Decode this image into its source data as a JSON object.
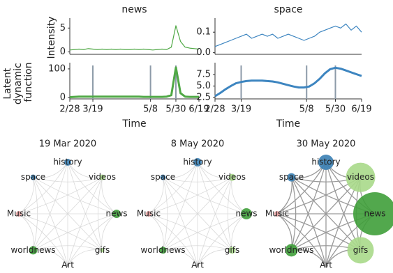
{
  "chart_data": [
    {
      "type": "line",
      "title": "news",
      "ylabel": "Intensity",
      "color": "#4fa845",
      "x": [
        "2/28",
        "3/3",
        "3/7",
        "3/11",
        "3/15",
        "3/19",
        "3/23",
        "3/27",
        "3/31",
        "4/4",
        "4/8",
        "4/12",
        "4/16",
        "4/20",
        "4/24",
        "4/28",
        "5/2",
        "5/6",
        "5/10",
        "5/14",
        "5/18",
        "5/22",
        "5/26",
        "5/30",
        "6/3",
        "6/7",
        "6/11",
        "6/15",
        "6/19"
      ],
      "values": [
        0.4,
        0.5,
        0.6,
        0.5,
        0.7,
        0.6,
        0.5,
        0.6,
        0.5,
        0.6,
        0.5,
        0.6,
        0.5,
        0.5,
        0.6,
        0.5,
        0.6,
        0.5,
        0.4,
        0.5,
        0.6,
        0.5,
        1.0,
        5.5,
        2.2,
        1.0,
        0.8,
        0.7,
        0.6
      ],
      "xlim": [
        "2/28",
        "6/19"
      ],
      "ylim": [
        -0.5,
        6.5
      ],
      "yticks": [
        0,
        5
      ]
    },
    {
      "type": "line",
      "title": "space",
      "color": "#3d85c0",
      "x": [
        "2/28",
        "3/3",
        "3/7",
        "3/11",
        "3/15",
        "3/19",
        "3/23",
        "3/27",
        "3/31",
        "4/4",
        "4/8",
        "4/12",
        "4/16",
        "4/20",
        "4/24",
        "4/28",
        "5/2",
        "5/6",
        "5/10",
        "5/14",
        "5/18",
        "5/22",
        "5/26",
        "5/30",
        "6/3",
        "6/7",
        "6/11",
        "6/15",
        "6/19"
      ],
      "values": [
        0.03,
        0.04,
        0.05,
        0.06,
        0.07,
        0.08,
        0.09,
        0.07,
        0.08,
        0.09,
        0.08,
        0.09,
        0.07,
        0.08,
        0.09,
        0.08,
        0.07,
        0.06,
        0.07,
        0.08,
        0.1,
        0.11,
        0.12,
        0.13,
        0.12,
        0.14,
        0.11,
        0.13,
        0.1
      ],
      "xlim": [
        "2/28",
        "6/19"
      ],
      "ylim": [
        -0.008,
        0.155
      ],
      "yticks": [
        {
          "value": 0,
          "label": "0.0"
        },
        0.1
      ]
    },
    {
      "type": "line",
      "ylabel": "Latent dynamic function",
      "xlabel": "Time",
      "color": "#4fa845",
      "x": [
        "2/28",
        "3/3",
        "3/7",
        "3/11",
        "3/15",
        "3/19",
        "3/23",
        "3/27",
        "3/31",
        "4/4",
        "4/8",
        "4/12",
        "4/16",
        "4/20",
        "4/24",
        "4/28",
        "5/2",
        "5/6",
        "5/10",
        "5/14",
        "5/18",
        "5/22",
        "5/26",
        "5/30",
        "6/3",
        "6/7",
        "6/11",
        "6/15",
        "6/19"
      ],
      "values": [
        1,
        2,
        3,
        3,
        3,
        3,
        3,
        3,
        3,
        3,
        3,
        3,
        3,
        3,
        3,
        3,
        2,
        2,
        2,
        2,
        2,
        3,
        8,
        105,
        15,
        3,
        2,
        2,
        2
      ],
      "xlim": [
        "2/28",
        "6/19"
      ],
      "xticks": [
        "2/28",
        "3/19",
        "5/8",
        "5/30",
        "6/19"
      ],
      "vlines": [
        "3/19",
        "5/8",
        "5/30"
      ],
      "ylim": [
        -5,
        112
      ],
      "yticks": [
        0,
        100
      ]
    },
    {
      "type": "line",
      "xlabel": "Time",
      "color": "#3d85c0",
      "x": [
        "2/28",
        "3/3",
        "3/7",
        "3/11",
        "3/15",
        "3/19",
        "3/23",
        "3/27",
        "3/31",
        "4/4",
        "4/8",
        "4/12",
        "4/16",
        "4/20",
        "4/24",
        "4/28",
        "5/2",
        "5/6",
        "5/10",
        "5/14",
        "5/18",
        "5/22",
        "5/26",
        "5/30",
        "6/3",
        "6/7",
        "6/11",
        "6/15",
        "6/19"
      ],
      "values": [
        2.8,
        3.5,
        4.3,
        5.0,
        5.6,
        5.9,
        6.1,
        6.2,
        6.2,
        6.2,
        6.1,
        6.0,
        5.8,
        5.5,
        5.2,
        4.9,
        4.7,
        4.7,
        4.9,
        5.6,
        6.6,
        7.8,
        8.7,
        9.0,
        8.8,
        8.4,
        8.0,
        7.6,
        7.2
      ],
      "xlim": [
        "2/28",
        "6/19"
      ],
      "xticks": [
        "2/28",
        "3/19",
        "5/8",
        "5/30",
        "6/19"
      ],
      "vlines": [
        "3/19",
        "5/8",
        "5/30"
      ],
      "ylim": [
        2.2,
        9.5
      ],
      "yticks": [
        2.5,
        {
          "value": 5,
          "label": "5.0"
        },
        7.5
      ]
    }
  ],
  "networks": [
    {
      "title": "19 Mar 2020",
      "nodes": [
        {
          "label": "history",
          "size": 5,
          "color": "#3a7fb4"
        },
        {
          "label": "videos",
          "size": 4,
          "color": "#a8d98a"
        },
        {
          "label": "news",
          "size": 6,
          "color": "#3f9e3a"
        },
        {
          "label": "gifs",
          "size": 3,
          "color": "#a8d98a"
        },
        {
          "label": "Art",
          "size": 2,
          "color": "#999999"
        },
        {
          "label": "worldnews",
          "size": 6,
          "color": "#3f9e3a"
        },
        {
          "label": "Music",
          "size": 4,
          "color": "#e8a0a0"
        },
        {
          "label": "space",
          "size": 4,
          "color": "#3a7fb4"
        }
      ]
    },
    {
      "title": "8 May 2020",
      "nodes": [
        {
          "label": "history",
          "size": 6,
          "color": "#3a7fb4"
        },
        {
          "label": "videos",
          "size": 5,
          "color": "#a8d98a"
        },
        {
          "label": "news",
          "size": 8,
          "color": "#3f9e3a"
        },
        {
          "label": "gifs",
          "size": 5,
          "color": "#a8d98a"
        },
        {
          "label": "Art",
          "size": 2,
          "color": "#999999"
        },
        {
          "label": "worldnews",
          "size": 5,
          "color": "#3f9e3a"
        },
        {
          "label": "Music",
          "size": 4,
          "color": "#e8a0a0"
        },
        {
          "label": "space",
          "size": 4,
          "color": "#3a7fb4"
        }
      ]
    },
    {
      "title": "30 May 2020",
      "nodes": [
        {
          "label": "history",
          "size": 11,
          "color": "#3a7fb4"
        },
        {
          "label": "videos",
          "size": 21,
          "color": "#a8d98a"
        },
        {
          "label": "news",
          "size": 31,
          "color": "#3f9e3a"
        },
        {
          "label": "gifs",
          "size": 19,
          "color": "#a8d98a"
        },
        {
          "label": "Art",
          "size": 3,
          "color": "#999999"
        },
        {
          "label": "worldnews",
          "size": 9,
          "color": "#3f9e3a"
        },
        {
          "label": "Music",
          "size": 4,
          "color": "#e8a0a0"
        },
        {
          "label": "space",
          "size": 6,
          "color": "#3a7fb4"
        }
      ]
    }
  ]
}
